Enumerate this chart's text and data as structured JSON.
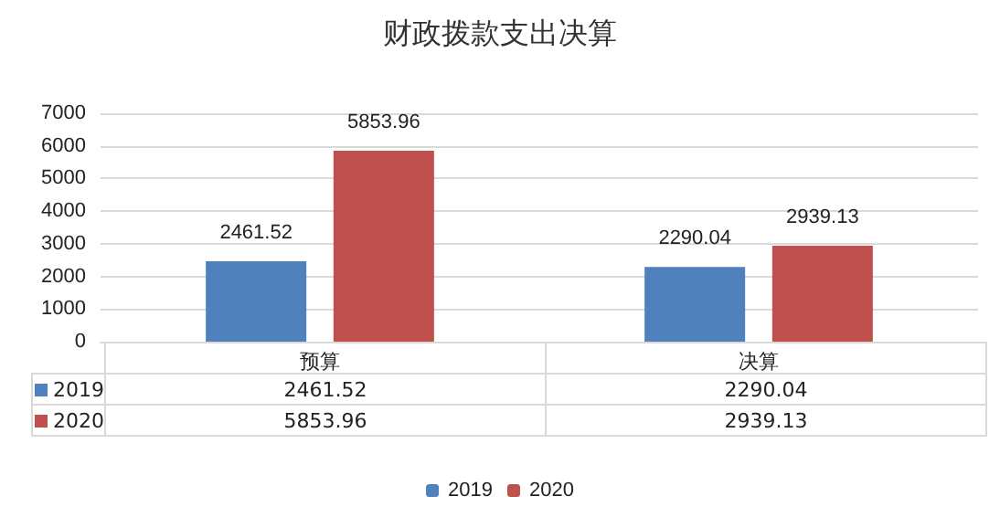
{
  "chart_data": {
    "type": "bar",
    "title": "财政拨款支出决算",
    "categories": [
      "预算",
      "决算"
    ],
    "series": [
      {
        "name": "2019",
        "color": "#4f81bd",
        "values": [
          2461.52,
          2290.04
        ],
        "value_labels": [
          "2461.52",
          "2290.04"
        ]
      },
      {
        "name": "2020",
        "color": "#c0504d",
        "values": [
          5853.96,
          2939.13
        ],
        "value_labels": [
          "5853.96",
          "2939.13"
        ]
      }
    ],
    "ylim": [
      0,
      7000
    ],
    "yticks": [
      0,
      1000,
      2000,
      3000,
      4000,
      5000,
      6000,
      7000
    ],
    "grid": "y",
    "legend": "bottom",
    "annotations": [
      "2461.52",
      "2290.04",
      "5853.96",
      "2939.13"
    ]
  }
}
